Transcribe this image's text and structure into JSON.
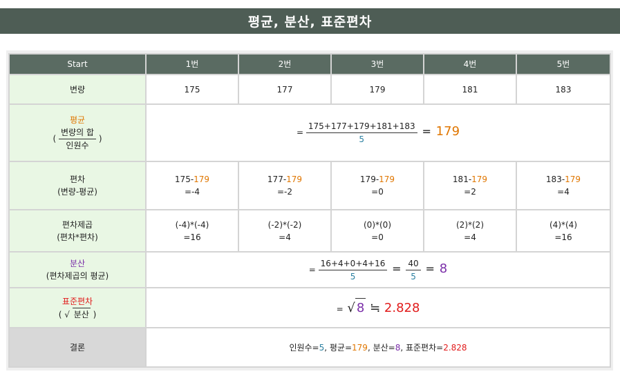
{
  "title": "평균, 분산, 표준편차",
  "header": {
    "start": "Start",
    "cols": [
      "1번",
      "2번",
      "3번",
      "4번",
      "5번"
    ]
  },
  "rows": {
    "variate": {
      "label": "변량",
      "values": [
        "175",
        "177",
        "179",
        "181",
        "183"
      ]
    },
    "mean": {
      "label": "평균",
      "formula_num": "변량의 합",
      "formula_den": "인원수",
      "lparen": "(",
      "rparen": ")",
      "eq": "=",
      "sum_expr": "175+177+179+181+183",
      "count": "5",
      "result_eq": "=",
      "result": "179"
    },
    "deviation": {
      "label": "편차",
      "sub": "(변량-평균)",
      "cells": [
        {
          "a": "175-",
          "m": "179",
          "r": "=-4"
        },
        {
          "a": "177-",
          "m": "179",
          "r": "=-2"
        },
        {
          "a": "179-",
          "m": "179",
          "r": "=0"
        },
        {
          "a": "181-",
          "m": "179",
          "r": "=2"
        },
        {
          "a": "183-",
          "m": "179",
          "r": "=4"
        }
      ]
    },
    "sq_deviation": {
      "label": "편차제곱",
      "sub": "(편차*편차)",
      "cells": [
        {
          "e": "(-4)*(-4)",
          "r": "=16"
        },
        {
          "e": "(-2)*(-2)",
          "r": "=4"
        },
        {
          "e": "(0)*(0)",
          "r": "=0"
        },
        {
          "e": "(2)*(2)",
          "r": "=4"
        },
        {
          "e": "(4)*(4)",
          "r": "=16"
        }
      ]
    },
    "variance": {
      "label": "분산",
      "sub": "(편차제곱의 평균)",
      "eq": "=",
      "sum_expr": "16+4+0+4+16",
      "count": "5",
      "mid_eq": "=",
      "num2": "40",
      "den2": "5",
      "result_eq": "=",
      "result": "8"
    },
    "stddev": {
      "label": "표준편차",
      "lparen": "(",
      "sqrt_sign": "√",
      "sub": "분산",
      "rparen": ")",
      "eq": "=",
      "root": "8",
      "approx": "≒",
      "result": "2.828"
    },
    "conclusion": {
      "label": "결론",
      "p1": "인원수=",
      "n": "5",
      "p2": ", 평균=",
      "mean": "179",
      "p3": ", 분산=",
      "var": "8",
      "p4": ", 표준편차=",
      "sd": "2.828"
    }
  },
  "colors": {
    "title_bg": "#4e5d55",
    "header_bg": "#5a6b62",
    "label_bg": "#e9f7e4",
    "orange": "#e07600",
    "blue": "#2a7fa0",
    "purple": "#7a2ea8",
    "red": "#e11b1b"
  }
}
